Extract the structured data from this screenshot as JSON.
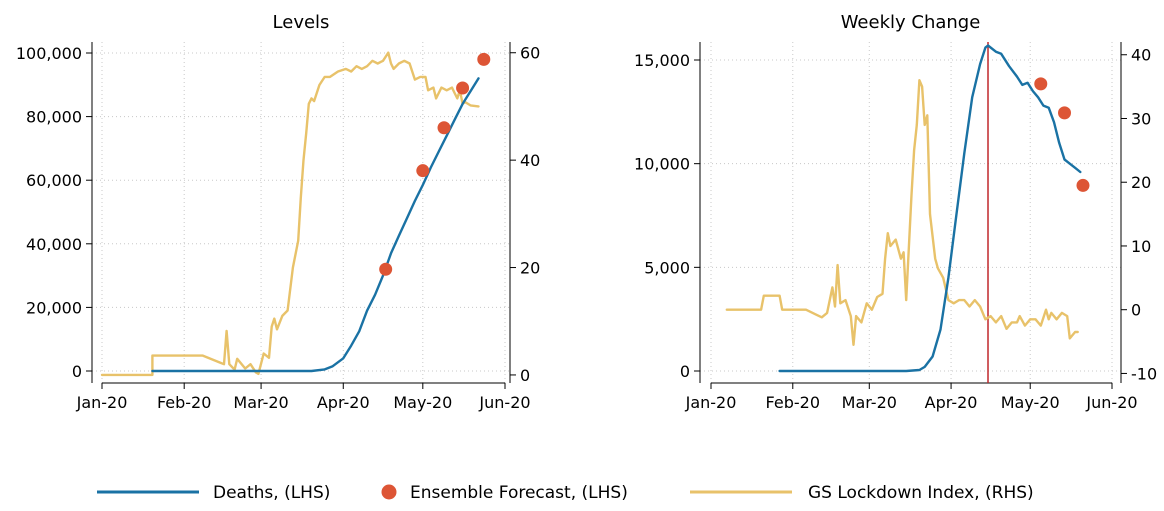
{
  "colors": {
    "deaths": "#1a72a4",
    "forecast": "#dd5535",
    "lockdown": "#e8c26a",
    "vline": "#c0282b"
  },
  "legend": [
    {
      "label": "Deaths, (LHS)",
      "kind": "line",
      "color": "#1a72a4"
    },
    {
      "label": "Ensemble Forecast, (LHS)",
      "kind": "dot",
      "color": "#dd5535"
    },
    {
      "label": "GS Lockdown Index, (RHS)",
      "kind": "line",
      "color": "#e8c26a"
    }
  ],
  "chart_data": [
    {
      "type": "line",
      "title": "Levels",
      "x_range": [
        "2020-01-01",
        "2020-06-01"
      ],
      "x_ticks": [
        {
          "date": "2020-01-01",
          "label": "Jan-20"
        },
        {
          "date": "2020-02-01",
          "label": "Feb-20"
        },
        {
          "date": "2020-03-01",
          "label": "Mar-20"
        },
        {
          "date": "2020-04-01",
          "label": "Apr-20"
        },
        {
          "date": "2020-05-01",
          "label": "May-20"
        },
        {
          "date": "2020-06-01",
          "label": "Jun-20"
        }
      ],
      "y_left": {
        "lim": [
          0,
          100000
        ],
        "ticks": [
          0,
          20000,
          40000,
          60000,
          80000,
          100000
        ],
        "labels": [
          "0",
          "20,000",
          "40,000",
          "60,000",
          "80,000",
          "100,000"
        ]
      },
      "y_right": {
        "lim": [
          -1.5,
          62
        ],
        "ticks": [
          0,
          20,
          40,
          60
        ],
        "labels": [
          "0",
          "20",
          "40",
          "60"
        ]
      },
      "grid": true,
      "series": [
        {
          "name": "Deaths, (LHS)",
          "axis": "left",
          "kind": "line",
          "points": [
            [
              "2020-01-20",
              0
            ],
            [
              "2020-03-20",
              0
            ],
            [
              "2020-03-25",
              500
            ],
            [
              "2020-03-28",
              1500
            ],
            [
              "2020-04-01",
              4000
            ],
            [
              "2020-04-04",
              8000
            ],
            [
              "2020-04-07",
              12500
            ],
            [
              "2020-04-10",
              19000
            ],
            [
              "2020-04-13",
              24000
            ],
            [
              "2020-04-16",
              30000
            ],
            [
              "2020-04-19",
              37000
            ],
            [
              "2020-04-22",
              42500
            ],
            [
              "2020-04-25",
              48000
            ],
            [
              "2020-04-28",
              53500
            ],
            [
              "2020-05-01",
              58500
            ],
            [
              "2020-05-04",
              64000
            ],
            [
              "2020-05-07",
              69000
            ],
            [
              "2020-05-10",
              74000
            ],
            [
              "2020-05-13",
              79000
            ],
            [
              "2020-05-16",
              84000
            ],
            [
              "2020-05-19",
              88000
            ],
            [
              "2020-05-22",
              92000
            ]
          ]
        },
        {
          "name": "Ensemble Forecast, (LHS)",
          "axis": "left",
          "kind": "scatter",
          "points": [
            [
              "2020-04-17",
              32000
            ],
            [
              "2020-05-01",
              63000
            ],
            [
              "2020-05-09",
              76500
            ],
            [
              "2020-05-16",
              89000
            ],
            [
              "2020-05-24",
              98000
            ]
          ]
        },
        {
          "name": "GS Lockdown Index, (RHS)",
          "axis": "right",
          "kind": "line",
          "points": [
            [
              "2020-01-01",
              0
            ],
            [
              "2020-01-20",
              0
            ],
            [
              "2020-01-20",
              3.6
            ],
            [
              "2020-02-08",
              3.6
            ],
            [
              "2020-02-15",
              2.2
            ],
            [
              "2020-02-16",
              2.0
            ],
            [
              "2020-02-17",
              8.2
            ],
            [
              "2020-02-18",
              2.0
            ],
            [
              "2020-02-20",
              1.0
            ],
            [
              "2020-02-21",
              3.0
            ],
            [
              "2020-02-24",
              1.2
            ],
            [
              "2020-02-26",
              2.0
            ],
            [
              "2020-02-28",
              0.5
            ],
            [
              "2020-02-29",
              0.2
            ],
            [
              "2020-03-02",
              4.0
            ],
            [
              "2020-03-04",
              3.2
            ],
            [
              "2020-03-05",
              9.0
            ],
            [
              "2020-03-06",
              10.5
            ],
            [
              "2020-03-07",
              8.5
            ],
            [
              "2020-03-09",
              11.0
            ],
            [
              "2020-03-11",
              12.0
            ],
            [
              "2020-03-13",
              20.0
            ],
            [
              "2020-03-15",
              25.0
            ],
            [
              "2020-03-16",
              33.0
            ],
            [
              "2020-03-17",
              40.0
            ],
            [
              "2020-03-18",
              45.0
            ],
            [
              "2020-03-19",
              50.5
            ],
            [
              "2020-03-20",
              51.5
            ],
            [
              "2020-03-21",
              51.0
            ],
            [
              "2020-03-23",
              54.0
            ],
            [
              "2020-03-25",
              55.5
            ],
            [
              "2020-03-27",
              55.5
            ],
            [
              "2020-03-30",
              56.5
            ],
            [
              "2020-04-02",
              57.0
            ],
            [
              "2020-04-04",
              56.5
            ],
            [
              "2020-04-06",
              57.5
            ],
            [
              "2020-04-08",
              57.0
            ],
            [
              "2020-04-10",
              57.5
            ],
            [
              "2020-04-12",
              58.5
            ],
            [
              "2020-04-14",
              58.0
            ],
            [
              "2020-04-16",
              58.5
            ],
            [
              "2020-04-18",
              60.0
            ],
            [
              "2020-04-19",
              58.0
            ],
            [
              "2020-04-20",
              57.0
            ],
            [
              "2020-04-22",
              58.0
            ],
            [
              "2020-04-24",
              58.5
            ],
            [
              "2020-04-26",
              58.0
            ],
            [
              "2020-04-28",
              55.0
            ],
            [
              "2020-04-30",
              55.5
            ],
            [
              "2020-05-02",
              55.5
            ],
            [
              "2020-05-03",
              53.0
            ],
            [
              "2020-05-05",
              53.5
            ],
            [
              "2020-05-06",
              51.5
            ],
            [
              "2020-05-08",
              53.5
            ],
            [
              "2020-05-10",
              53.0
            ],
            [
              "2020-05-12",
              53.5
            ],
            [
              "2020-05-13",
              52.5
            ],
            [
              "2020-05-14",
              51.5
            ],
            [
              "2020-05-15",
              53.0
            ],
            [
              "2020-05-16",
              50.5
            ],
            [
              "2020-05-17",
              50.8
            ],
            [
              "2020-05-19",
              50.2
            ],
            [
              "2020-05-22",
              50.0
            ]
          ]
        }
      ]
    },
    {
      "type": "line",
      "title": "Weekly Change",
      "x_range": [
        "2020-01-01",
        "2020-06-01"
      ],
      "x_ticks": [
        {
          "date": "2020-01-01",
          "label": "Jan-20"
        },
        {
          "date": "2020-02-01",
          "label": "Feb-20"
        },
        {
          "date": "2020-03-01",
          "label": "Mar-20"
        },
        {
          "date": "2020-04-01",
          "label": "Apr-20"
        },
        {
          "date": "2020-05-01",
          "label": "May-20"
        },
        {
          "date": "2020-06-01",
          "label": "Jun-20"
        }
      ],
      "y_left": {
        "lim": [
          -400,
          16200
        ],
        "ticks": [
          0,
          5000,
          10000,
          15000
        ],
        "labels": [
          "0",
          "5,000",
          "10,000",
          "15,000"
        ]
      },
      "y_right": {
        "lim": [
          -11.5,
          42
        ],
        "ticks": [
          -10,
          0,
          10,
          20,
          30,
          40
        ],
        "labels": [
          "-10",
          "0",
          "10",
          "20",
          "30",
          "40"
        ]
      },
      "grid": true,
      "vertical_line": "2020-04-15",
      "series": [
        {
          "name": "Deaths, (LHS)",
          "axis": "left",
          "kind": "line",
          "points": [
            [
              "2020-01-27",
              0
            ],
            [
              "2020-03-15",
              0
            ],
            [
              "2020-03-20",
              50
            ],
            [
              "2020-03-22",
              200
            ],
            [
              "2020-03-25",
              700
            ],
            [
              "2020-03-28",
              2000
            ],
            [
              "2020-03-31",
              4500
            ],
            [
              "2020-04-03",
              7500
            ],
            [
              "2020-04-06",
              10500
            ],
            [
              "2020-04-09",
              13200
            ],
            [
              "2020-04-12",
              14800
            ],
            [
              "2020-04-14",
              15600
            ],
            [
              "2020-04-15",
              15700
            ],
            [
              "2020-04-18",
              15400
            ],
            [
              "2020-04-20",
              15300
            ],
            [
              "2020-04-23",
              14700
            ],
            [
              "2020-04-26",
              14200
            ],
            [
              "2020-04-28",
              13800
            ],
            [
              "2020-04-30",
              13900
            ],
            [
              "2020-05-02",
              13500
            ],
            [
              "2020-05-04",
              13200
            ],
            [
              "2020-05-06",
              12800
            ],
            [
              "2020-05-08",
              12700
            ],
            [
              "2020-05-10",
              12000
            ],
            [
              "2020-05-12",
              11000
            ],
            [
              "2020-05-14",
              10200
            ],
            [
              "2020-05-16",
              10000
            ],
            [
              "2020-05-18",
              9800
            ],
            [
              "2020-05-20",
              9600
            ]
          ]
        },
        {
          "name": "Ensemble Forecast, (LHS)",
          "axis": "left",
          "kind": "scatter",
          "points": [
            [
              "2020-05-05",
              13850
            ],
            [
              "2020-05-14",
              12450
            ],
            [
              "2020-05-21",
              8950
            ]
          ]
        },
        {
          "name": "GS Lockdown Index, (RHS)",
          "axis": "right",
          "kind": "line",
          "points": [
            [
              "2020-01-07",
              0
            ],
            [
              "2020-01-20",
              0
            ],
            [
              "2020-01-21",
              2.2
            ],
            [
              "2020-01-27",
              2.2
            ],
            [
              "2020-01-28",
              0
            ],
            [
              "2020-02-06",
              0
            ],
            [
              "2020-02-10",
              -0.8
            ],
            [
              "2020-02-12",
              -1.2
            ],
            [
              "2020-02-14",
              -0.5
            ],
            [
              "2020-02-16",
              3.5
            ],
            [
              "2020-02-17",
              0.5
            ],
            [
              "2020-02-18",
              7.0
            ],
            [
              "2020-02-19",
              1.0
            ],
            [
              "2020-02-21",
              1.5
            ],
            [
              "2020-02-23",
              -1.0
            ],
            [
              "2020-02-24",
              -5.5
            ],
            [
              "2020-02-25",
              -1.0
            ],
            [
              "2020-02-27",
              -2.0
            ],
            [
              "2020-02-29",
              1.0
            ],
            [
              "2020-03-02",
              0.0
            ],
            [
              "2020-03-04",
              2.0
            ],
            [
              "2020-03-06",
              2.5
            ],
            [
              "2020-03-07",
              8.0
            ],
            [
              "2020-03-08",
              12.0
            ],
            [
              "2020-03-09",
              10.0
            ],
            [
              "2020-03-11",
              11.0
            ],
            [
              "2020-03-13",
              8.0
            ],
            [
              "2020-03-14",
              9.0
            ],
            [
              "2020-03-15",
              1.5
            ],
            [
              "2020-03-17",
              18.0
            ],
            [
              "2020-03-18",
              25.0
            ],
            [
              "2020-03-19",
              29.0
            ],
            [
              "2020-03-20",
              36.0
            ],
            [
              "2020-03-21",
              35.0
            ],
            [
              "2020-03-22",
              29.0
            ],
            [
              "2020-03-23",
              30.5
            ],
            [
              "2020-03-24",
              15.0
            ],
            [
              "2020-03-26",
              8.0
            ],
            [
              "2020-03-27",
              6.5
            ],
            [
              "2020-03-29",
              5.0
            ],
            [
              "2020-03-31",
              1.5
            ],
            [
              "2020-04-02",
              1.0
            ],
            [
              "2020-04-04",
              1.5
            ],
            [
              "2020-04-06",
              1.5
            ],
            [
              "2020-04-08",
              0.5
            ],
            [
              "2020-04-10",
              1.5
            ],
            [
              "2020-04-12",
              0.5
            ],
            [
              "2020-04-14",
              -1.5
            ],
            [
              "2020-04-16",
              -1.0
            ],
            [
              "2020-04-18",
              -2.0
            ],
            [
              "2020-04-20",
              -1.0
            ],
            [
              "2020-04-22",
              -3.0
            ],
            [
              "2020-04-24",
              -2.0
            ],
            [
              "2020-04-26",
              -2.0
            ],
            [
              "2020-04-27",
              -1.0
            ],
            [
              "2020-04-29",
              -2.5
            ],
            [
              "2020-05-01",
              -1.5
            ],
            [
              "2020-05-03",
              -1.5
            ],
            [
              "2020-05-05",
              -2.5
            ],
            [
              "2020-05-07",
              0.0
            ],
            [
              "2020-05-08",
              -1.5
            ],
            [
              "2020-05-09",
              -0.5
            ],
            [
              "2020-05-11",
              -1.5
            ],
            [
              "2020-05-13",
              -0.5
            ],
            [
              "2020-05-15",
              -1.0
            ],
            [
              "2020-05-16",
              -4.5
            ],
            [
              "2020-05-18",
              -3.5
            ],
            [
              "2020-05-19",
              -3.5
            ]
          ]
        }
      ]
    }
  ]
}
